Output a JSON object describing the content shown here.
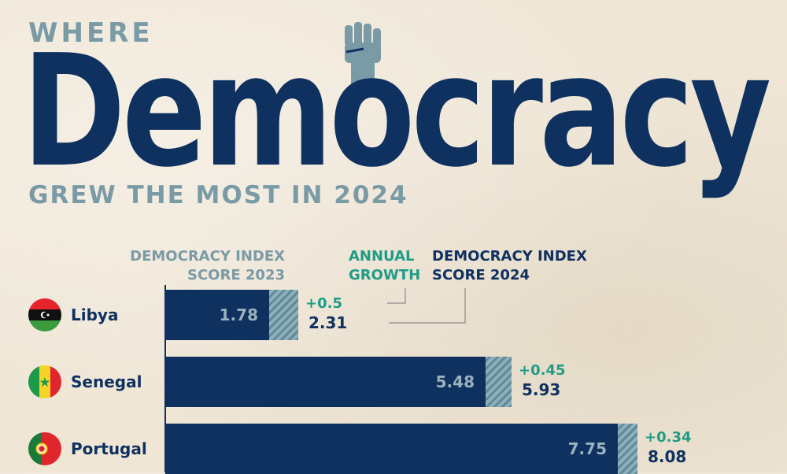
{
  "header": {
    "where": "WHERE",
    "headline": "Democracy",
    "subtitle": "GREW THE MOST IN 2024"
  },
  "legend": {
    "score_2023": [
      "DEMOCRACY INDEX",
      "SCORE 2023"
    ],
    "growth": [
      "ANNUAL",
      "GROWTH"
    ],
    "score_2024": [
      "DEMOCRACY INDEX",
      "SCORE 2024"
    ]
  },
  "colors": {
    "navy": "#0f3160",
    "teal": "#1e9c87",
    "muted": "#7a9aa6",
    "background": "#efe6d6"
  },
  "chart_data": {
    "type": "bar",
    "orientation": "horizontal",
    "categories": [
      "Libya",
      "Senegal",
      "Portugal"
    ],
    "series": [
      {
        "name": "DEMOCRACY INDEX SCORE 2023",
        "values": [
          1.78,
          5.48,
          7.75
        ],
        "labels": [
          "1.78",
          "5.48",
          "7.75"
        ]
      },
      {
        "name": "ANNUAL GROWTH",
        "values": [
          0.5,
          0.45,
          0.34
        ],
        "labels": [
          "+0.5",
          "+0.45",
          "+0.34"
        ]
      },
      {
        "name": "DEMOCRACY INDEX SCORE 2024",
        "values": [
          2.31,
          5.93,
          8.08
        ],
        "labels": [
          "2.31",
          "5.93",
          "8.08"
        ]
      }
    ],
    "flags": [
      "libya-flag-icon",
      "senegal-flag-icon",
      "portugal-flag-icon"
    ],
    "xlim": [
      0,
      10
    ],
    "grid": false
  }
}
